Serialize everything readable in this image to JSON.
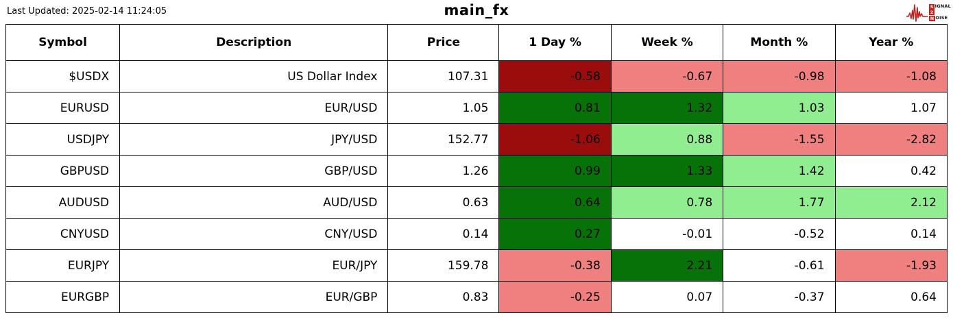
{
  "header": {
    "last_updated": "Last Updated: 2025-02-14 11:24:05",
    "title": "main_fx",
    "logo": {
      "word1_initial": "S",
      "word1_rest": "IGNAL",
      "word2": "2",
      "word3_initial": "N",
      "word3_rest": "OISE",
      "accent_color": "#c41f1f"
    }
  },
  "colors": {
    "dark_red": "#9b0c0c",
    "light_red": "#f08080",
    "dark_green": "#077207",
    "light_green": "#90ee90",
    "white": "#ffffff"
  },
  "chart_data": {
    "type": "table",
    "title": "main_fx",
    "columns": [
      "Symbol",
      "Description",
      "Price",
      "1 Day %",
      "Week %",
      "Month %",
      "Year %"
    ],
    "rows": [
      {
        "symbol": "$USDX",
        "description": "US Dollar Index",
        "price": "107.31",
        "changes": [
          "-0.58",
          "-0.67",
          "-0.98",
          "-1.08"
        ],
        "change_colors": [
          "dark_red",
          "light_red",
          "light_red",
          "light_red"
        ]
      },
      {
        "symbol": "EURUSD",
        "description": "EUR/USD",
        "price": "1.05",
        "changes": [
          "0.81",
          "1.32",
          "1.03",
          "1.07"
        ],
        "change_colors": [
          "dark_green",
          "dark_green",
          "light_green",
          "white"
        ]
      },
      {
        "symbol": "USDJPY",
        "description": "JPY/USD",
        "price": "152.77",
        "changes": [
          "-1.06",
          "0.88",
          "-1.55",
          "-2.82"
        ],
        "change_colors": [
          "dark_red",
          "light_green",
          "light_red",
          "light_red"
        ]
      },
      {
        "symbol": "GBPUSD",
        "description": "GBP/USD",
        "price": "1.26",
        "changes": [
          "0.99",
          "1.33",
          "1.42",
          "0.42"
        ],
        "change_colors": [
          "dark_green",
          "dark_green",
          "light_green",
          "white"
        ]
      },
      {
        "symbol": "AUDUSD",
        "description": "AUD/USD",
        "price": "0.63",
        "changes": [
          "0.64",
          "0.78",
          "1.77",
          "2.12"
        ],
        "change_colors": [
          "dark_green",
          "light_green",
          "light_green",
          "light_green"
        ]
      },
      {
        "symbol": "CNYUSD",
        "description": "CNY/USD",
        "price": "0.14",
        "changes": [
          "0.27",
          "-0.01",
          "-0.52",
          "0.14"
        ],
        "change_colors": [
          "dark_green",
          "white",
          "white",
          "white"
        ]
      },
      {
        "symbol": "EURJPY",
        "description": "EUR/JPY",
        "price": "159.78",
        "changes": [
          "-0.38",
          "2.21",
          "-0.61",
          "-1.93"
        ],
        "change_colors": [
          "light_red",
          "dark_green",
          "white",
          "light_red"
        ]
      },
      {
        "symbol": "EURGBP",
        "description": "EUR/GBP",
        "price": "0.83",
        "changes": [
          "-0.25",
          "0.07",
          "-0.37",
          "0.64"
        ],
        "change_colors": [
          "light_red",
          "white",
          "white",
          "white"
        ]
      }
    ]
  }
}
